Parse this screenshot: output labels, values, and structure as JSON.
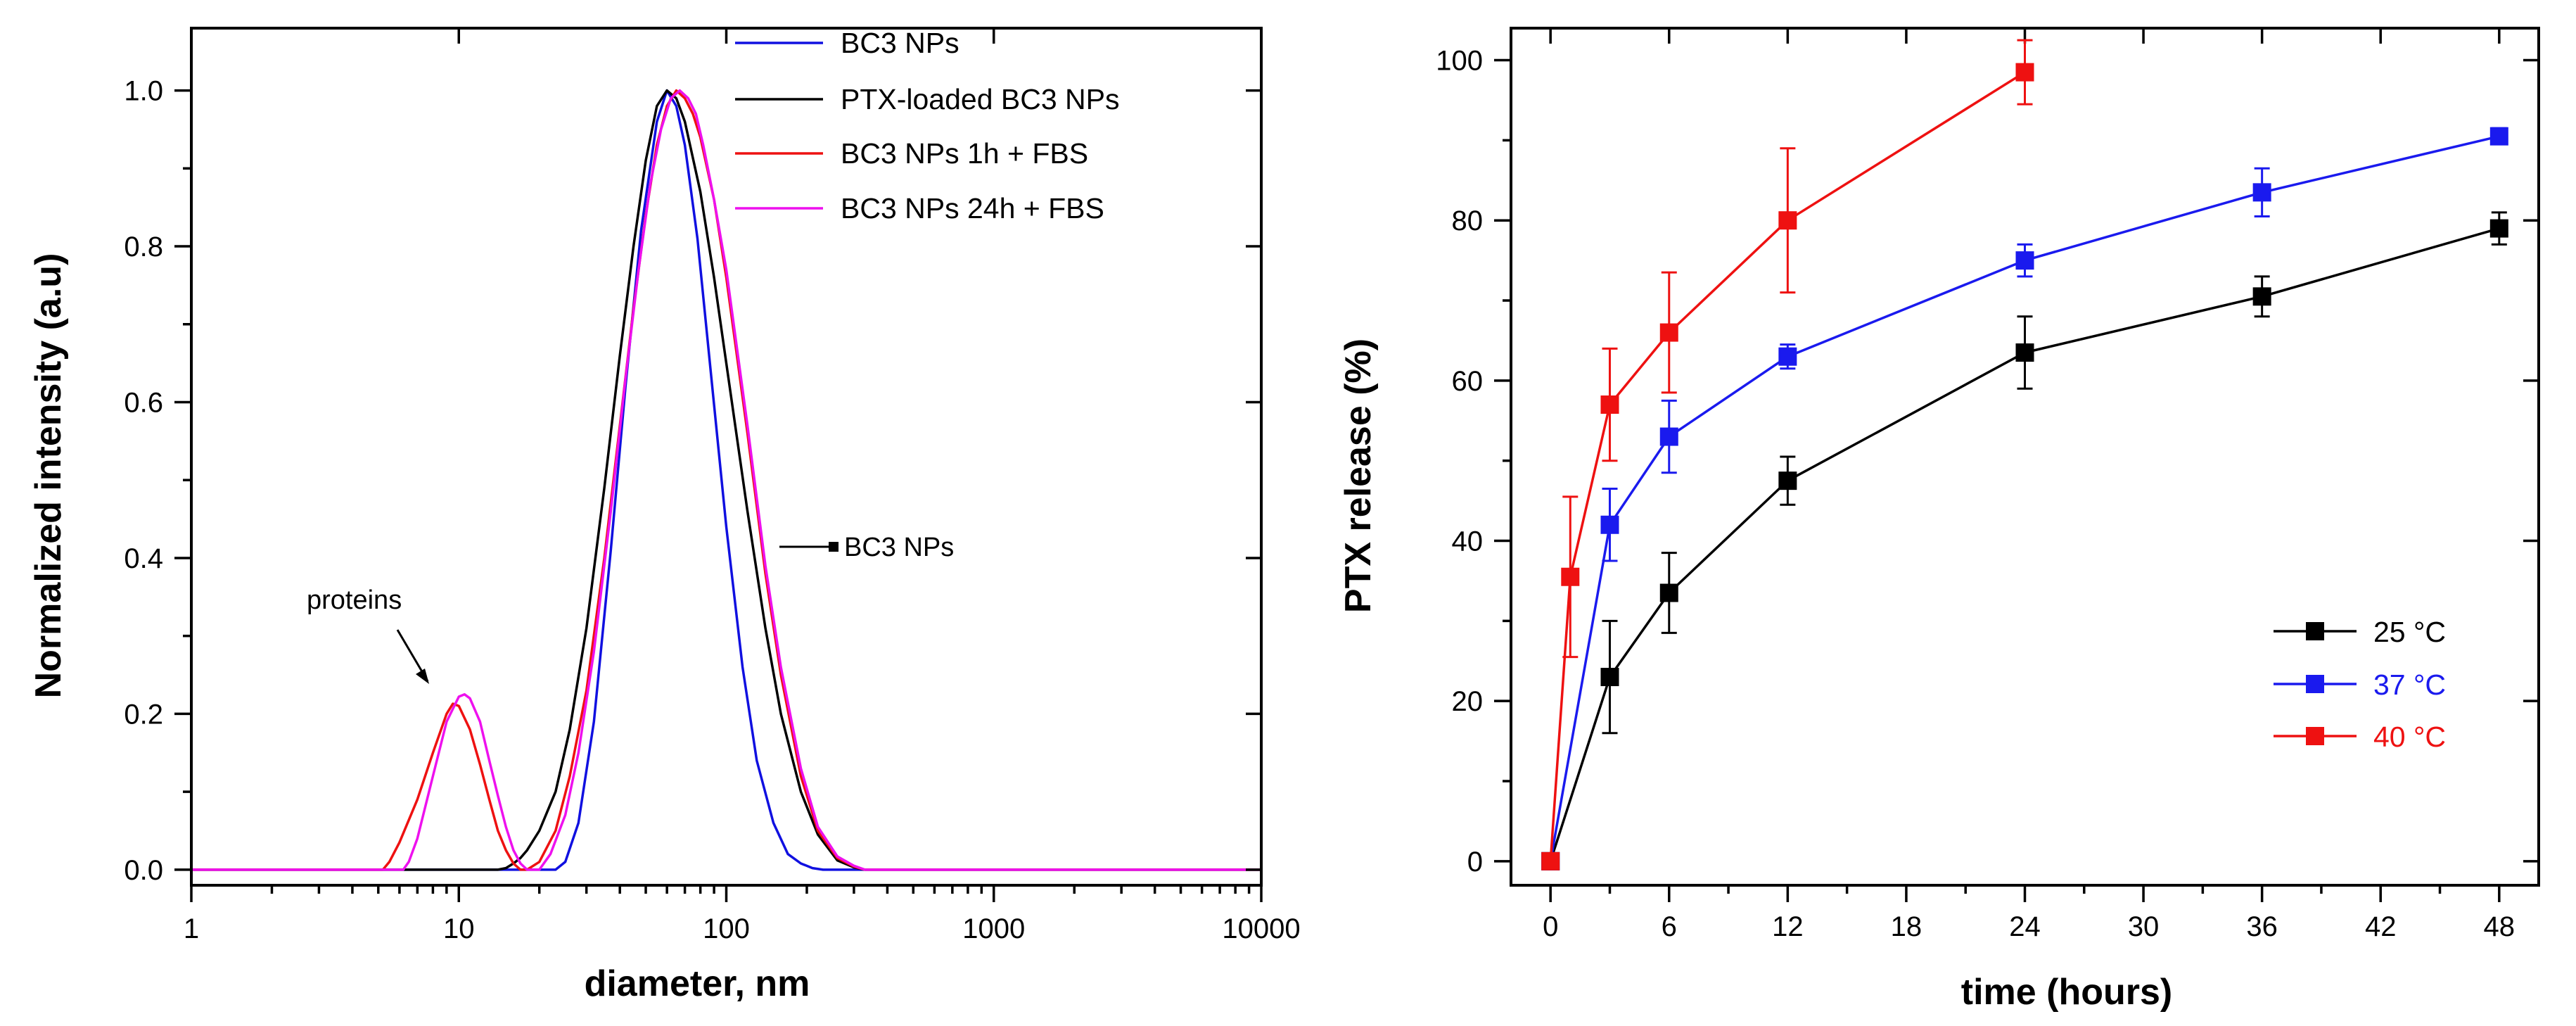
{
  "chart_data": [
    {
      "type": "line",
      "xscale": "log",
      "title": "",
      "xlabel": "diameter, nm",
      "ylabel": "Normalized intensity (a.u)",
      "xlim": [
        1,
        10000
      ],
      "ylim": [
        -0.02,
        1.08
      ],
      "xticks": [
        1,
        10,
        100,
        1000,
        10000
      ],
      "xtick_labels": [
        "1",
        "10",
        "100",
        "1000",
        "10000"
      ],
      "yticks": [
        0,
        0.2,
        0.4,
        0.6,
        0.8,
        1.0
      ],
      "ytick_labels": [
        "0.0",
        "0.2",
        "0.4",
        "0.6",
        "0.8",
        "1.0"
      ],
      "legend_position": "top-right",
      "series": [
        {
          "name": "BC3 NPs",
          "color": "#1010e0",
          "x": [
            1,
            23,
            25,
            28,
            32,
            37,
            42,
            48,
            55,
            60,
            65,
            70,
            78,
            88,
            100,
            115,
            130,
            150,
            170,
            190,
            210,
            230,
            10000
          ],
          "y": [
            0,
            0,
            0.01,
            0.06,
            0.19,
            0.41,
            0.62,
            0.82,
            0.96,
            1.0,
            0.98,
            0.93,
            0.81,
            0.63,
            0.44,
            0.26,
            0.14,
            0.06,
            0.02,
            0.008,
            0.002,
            0,
            0
          ]
        },
        {
          "name": "PTX-loaded BC3 NPs",
          "color": "#000000",
          "x": [
            1,
            14,
            15,
            16,
            17,
            18,
            20,
            23,
            26,
            30,
            35,
            40,
            45,
            50,
            55,
            60,
            65,
            70,
            80,
            90,
            100,
            120,
            140,
            160,
            190,
            220,
            260,
            300,
            330,
            10000
          ],
          "y": [
            0,
            0,
            0.002,
            0.008,
            0.015,
            0.025,
            0.05,
            0.1,
            0.18,
            0.31,
            0.49,
            0.66,
            0.8,
            0.91,
            0.98,
            1.0,
            0.99,
            0.96,
            0.87,
            0.76,
            0.65,
            0.46,
            0.31,
            0.2,
            0.1,
            0.045,
            0.012,
            0.003,
            0,
            0
          ]
        },
        {
          "name": "BC3 NPs 1h + FBS",
          "color": "#ee1111",
          "x": [
            1,
            5.2,
            5.5,
            6,
            7,
            8,
            9,
            9.5,
            10,
            11,
            12,
            13,
            14,
            15,
            16,
            17,
            18,
            20,
            23,
            26,
            30,
            35,
            40,
            45,
            50,
            55,
            60,
            65,
            70,
            75,
            80,
            90,
            100,
            120,
            140,
            160,
            190,
            220,
            260,
            300,
            330,
            10000
          ],
          "y": [
            0,
            0,
            0.01,
            0.035,
            0.09,
            0.15,
            0.2,
            0.213,
            0.21,
            0.18,
            0.135,
            0.09,
            0.05,
            0.025,
            0.008,
            0.0,
            0.0,
            0.01,
            0.05,
            0.12,
            0.23,
            0.4,
            0.57,
            0.72,
            0.84,
            0.93,
            0.98,
            1.0,
            0.99,
            0.97,
            0.94,
            0.86,
            0.76,
            0.56,
            0.38,
            0.25,
            0.12,
            0.05,
            0.015,
            0.004,
            0,
            0
          ]
        },
        {
          "name": "BC3 NPs 24h + FBS",
          "color": "#ee11ee",
          "x": [
            1,
            6.2,
            6.5,
            7,
            8,
            9,
            10,
            10.5,
            11,
            12,
            13,
            14,
            15,
            16,
            17,
            18,
            19,
            20,
            22,
            25,
            28,
            32,
            37,
            42,
            47,
            52,
            57,
            62,
            67,
            72,
            77,
            82,
            90,
            100,
            120,
            140,
            160,
            190,
            220,
            260,
            300,
            330,
            10000
          ],
          "y": [
            0,
            0,
            0.01,
            0.04,
            0.12,
            0.19,
            0.222,
            0.225,
            0.22,
            0.19,
            0.14,
            0.095,
            0.055,
            0.025,
            0.008,
            0.0,
            0.0,
            0.0,
            0.02,
            0.07,
            0.15,
            0.28,
            0.46,
            0.63,
            0.77,
            0.88,
            0.95,
            0.99,
            1.0,
            0.99,
            0.97,
            0.93,
            0.86,
            0.77,
            0.57,
            0.39,
            0.26,
            0.13,
            0.055,
            0.017,
            0.005,
            0,
            0
          ]
        }
      ],
      "annotations": [
        {
          "text": "proteins",
          "x": 10,
          "y": 0.22
        },
        {
          "text": "BC3 NPs",
          "x": 130,
          "y": 0.41
        }
      ]
    },
    {
      "type": "line",
      "title": "",
      "xlabel": "time (hours)",
      "ylabel": "PTX release (%)",
      "xlim": [
        -2,
        50
      ],
      "ylim": [
        -3,
        104
      ],
      "xticks": [
        0,
        6,
        12,
        18,
        24,
        30,
        36,
        42,
        48
      ],
      "xtick_labels": [
        "0",
        "6",
        "12",
        "18",
        "24",
        "30",
        "36",
        "42",
        "48"
      ],
      "yticks": [
        0,
        20,
        40,
        60,
        80,
        100
      ],
      "ytick_labels": [
        "0",
        "20",
        "40",
        "60",
        "80",
        "100"
      ],
      "legend_position": "bottom-right",
      "series": [
        {
          "name": "25 °C",
          "color": "#000000",
          "x": [
            0,
            3,
            6,
            12,
            24,
            36,
            48
          ],
          "y": [
            0,
            23,
            33.5,
            47.5,
            63.5,
            70.5,
            79
          ],
          "err": [
            0,
            7,
            5,
            3,
            4.5,
            2.5,
            2
          ]
        },
        {
          "name": "37 °C",
          "color": "#1a1aee",
          "x": [
            0,
            3,
            6,
            12,
            24,
            36,
            48
          ],
          "y": [
            0,
            42,
            53,
            63,
            75,
            83.5,
            90.5
          ],
          "err": [
            0,
            4.5,
            4.5,
            1.5,
            2,
            3,
            1
          ]
        },
        {
          "name": "40 °C",
          "color": "#ee1111",
          "x": [
            0,
            1,
            3,
            6,
            12,
            24
          ],
          "y": [
            0,
            35.5,
            57,
            66,
            80,
            98.5
          ],
          "err": [
            0,
            10,
            7,
            7.5,
            9,
            4
          ]
        }
      ]
    }
  ]
}
